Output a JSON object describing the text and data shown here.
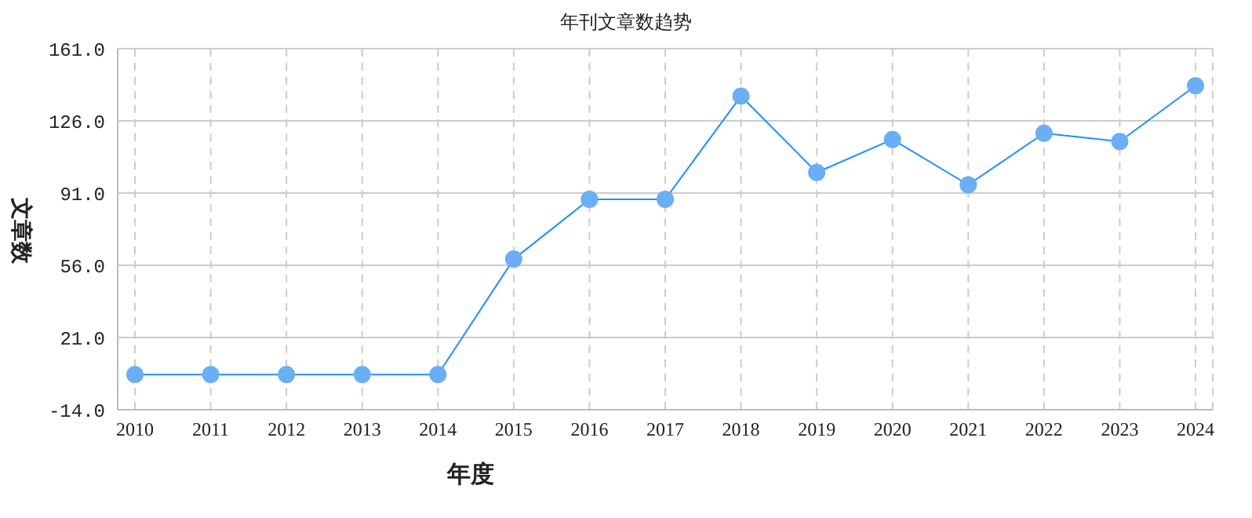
{
  "chart_data": {
    "type": "line",
    "title": "年刊文章数趋势",
    "xlabel": "年度",
    "ylabel": "文章数",
    "categories": [
      "2010",
      "2011",
      "2012",
      "2013",
      "2014",
      "2015",
      "2016",
      "2017",
      "2018",
      "2019",
      "2020",
      "2021",
      "2022",
      "2023",
      "2024"
    ],
    "series": [
      {
        "color": "#1e90ff",
        "values": [
          3,
          3,
          3,
          3,
          3,
          59,
          88,
          88,
          138,
          101,
          117,
          95,
          120,
          116,
          143
        ]
      }
    ],
    "ylim": [
      -14,
      161
    ],
    "yticks": [
      {
        "value": -14,
        "label": "-14.0"
      },
      {
        "value": 21,
        "label": "21.0"
      },
      {
        "value": 56,
        "label": "56.0"
      },
      {
        "value": 91,
        "label": "91.0"
      },
      {
        "value": 126,
        "label": "126.0"
      },
      {
        "value": 161,
        "label": "161.0"
      }
    ],
    "grid": true,
    "marker": "circle",
    "line_style": "solid",
    "legend": false
  }
}
